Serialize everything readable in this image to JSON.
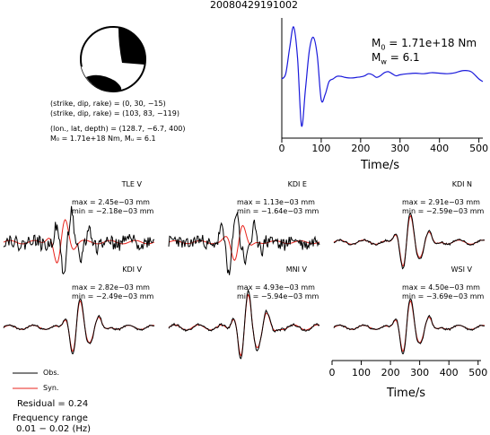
{
  "title": "20080429191002",
  "source": {
    "nodal_plane_1": "(strike, dip, rake) = (0, 30, −15)",
    "nodal_plane_2": "(strike, dip, rake) = (103, 83, −119)",
    "location": "(lon., lat, depth) = (128.7, −6.7, 400)",
    "moment_line": "M₀ = 1.71e+18 Nm, Mᵤ = 6.1"
  },
  "stf": {
    "m0_label": "M",
    "m0_sub": "0",
    "m0_value": " = 1.71e+18 Nm",
    "mw_label": "M",
    "mw_sub": "w",
    "mw_value": " = 6.1",
    "xlabel": "Time/s",
    "xticks": [
      "0",
      "100",
      "200",
      "300",
      "400",
      "500"
    ]
  },
  "bottom_axis": {
    "xlabel": "Time/s",
    "xticks": [
      "0",
      "100",
      "200",
      "300",
      "400",
      "500"
    ]
  },
  "legend": {
    "obs_label": "Obs.",
    "syn_label": "Syn.",
    "obs_color": "#000000",
    "syn_color": "#e8241c"
  },
  "residual": "Residual = 0.24",
  "freq_title": "Frequency range",
  "freq_value": "0.01 − 0.02 (Hz)",
  "stations": [
    {
      "name": "TLE V",
      "max": "max = 2.45e−03 mm",
      "min": "min = −2.18e−03 mm"
    },
    {
      "name": "KDI E",
      "max": "max = 1.13e−03 mm",
      "min": "min = −1.64e−03 mm"
    },
    {
      "name": "KDI N",
      "max": "max = 2.91e−03 mm",
      "min": "min = −2.59e−03 mm"
    },
    {
      "name": "KDI V",
      "max": "max = 2.82e−03 mm",
      "min": "min = −2.49e−03 mm"
    },
    {
      "name": "MNI V",
      "max": "max = 4.93e−03 mm",
      "min": "min = −5.94e−03 mm"
    },
    {
      "name": "WSI V",
      "max": "max = 4.50e−03 mm",
      "min": "min = −3.69e−03 mm"
    }
  ],
  "chart_data": {
    "type": "line",
    "stf": {
      "x": [
        0,
        10,
        20,
        30,
        40,
        50,
        60,
        70,
        80,
        90,
        100,
        110,
        120,
        130,
        140,
        150,
        160,
        170,
        180,
        190,
        200,
        210,
        220,
        230,
        240,
        250,
        260,
        270,
        280,
        290,
        300,
        320,
        340,
        360,
        380,
        400,
        420,
        440,
        460,
        480,
        500,
        510
      ],
      "y": [
        0.0,
        0.1,
        0.6,
        1.0,
        0.4,
        -0.9,
        -0.2,
        0.55,
        0.8,
        0.45,
        -0.4,
        -0.3,
        -0.05,
        0.0,
        0.05,
        0.05,
        0.03,
        0.02,
        0.02,
        0.03,
        0.04,
        0.06,
        0.1,
        0.08,
        0.03,
        0.06,
        0.12,
        0.14,
        0.1,
        0.06,
        0.08,
        0.1,
        0.11,
        0.1,
        0.12,
        0.11,
        0.1,
        0.12,
        0.16,
        0.14,
        0.0,
        -0.05
      ]
    },
    "xticks": [
      0,
      100,
      200,
      300,
      400,
      500
    ],
    "xlim": [
      0,
      510
    ]
  }
}
